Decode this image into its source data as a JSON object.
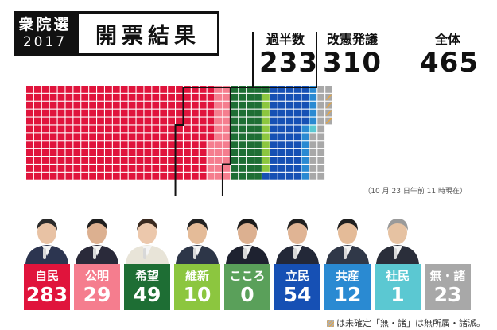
{
  "header": {
    "badge_line1": "衆院選",
    "badge_line2": "2017",
    "title": "開票結果"
  },
  "stats": {
    "majority_label": "過半数",
    "majority_value": "233",
    "revision_label": "改憲発議",
    "revision_value": "310",
    "total_label": "全体",
    "total_value": "465"
  },
  "timestamp": "（10 月 23 日午前 11 時現在）",
  "footnote": "は未確定「無・諸」は無所属・諸派。",
  "chart_data": {
    "type": "waffle",
    "total": 465,
    "majority": 233,
    "revision": 310,
    "series": [
      {
        "name": "自民",
        "value": 283,
        "color": "#e0143c"
      },
      {
        "name": "公明",
        "value": 29,
        "color": "#f57d8e"
      },
      {
        "name": "希望",
        "value": 49,
        "color": "#1e6e34"
      },
      {
        "name": "維新",
        "value": 10,
        "color": "#8cc63f"
      },
      {
        "name": "こころ",
        "value": 0,
        "color": "#5aa05a"
      },
      {
        "name": "立民",
        "value": 54,
        "color": "#1650b4"
      },
      {
        "name": "共産",
        "value": 12,
        "color": "#2a8ad2"
      },
      {
        "name": "社民",
        "value": 1,
        "color": "#5bc8d2"
      },
      {
        "name": "無・諸",
        "value": 23,
        "color": "#a8a8a8"
      }
    ],
    "undecided": 4,
    "undecided_color": "#e8a640"
  },
  "parties": [
    {
      "name": "自民",
      "seats": "283",
      "color": "#e0143c",
      "suit": "#2c3550",
      "hair": "#2a2a2a",
      "skin": "#e8c2a4"
    },
    {
      "name": "公明",
      "seats": "29",
      "color": "#f57d8e",
      "suit": "#2a2a3a",
      "hair": "#1e1e1e",
      "skin": "#dcb090"
    },
    {
      "name": "希望",
      "seats": "49",
      "color": "#1e6e34",
      "suit": "#e8e4d8",
      "hair": "#3a2a20",
      "skin": "#ecc8ac"
    },
    {
      "name": "維新",
      "seats": "10",
      "color": "#8cc63f",
      "suit": "#2d3648",
      "hair": "#222222",
      "skin": "#e4bb98"
    },
    {
      "name": "こころ",
      "seats": "0",
      "color": "#5aa05a",
      "suit": "#1e2230",
      "hair": "#1b1b1b",
      "skin": "#dcb090"
    },
    {
      "name": "立民",
      "seats": "54",
      "color": "#1650b4",
      "suit": "#232838",
      "hair": "#202020",
      "skin": "#e0b494"
    },
    {
      "name": "共産",
      "seats": "12",
      "color": "#2a8ad2",
      "suit": "#303848",
      "hair": "#202020",
      "skin": "#e4bb98"
    },
    {
      "name": "社民",
      "seats": "1",
      "color": "#5bc8d2",
      "suit": "#2a2e3a",
      "hair": "#9a9a9a",
      "skin": "#e6c2a2"
    },
    {
      "name": "無・諸",
      "seats": "23",
      "color": "#a8a8a8",
      "suit": "",
      "hair": "",
      "skin": ""
    }
  ]
}
